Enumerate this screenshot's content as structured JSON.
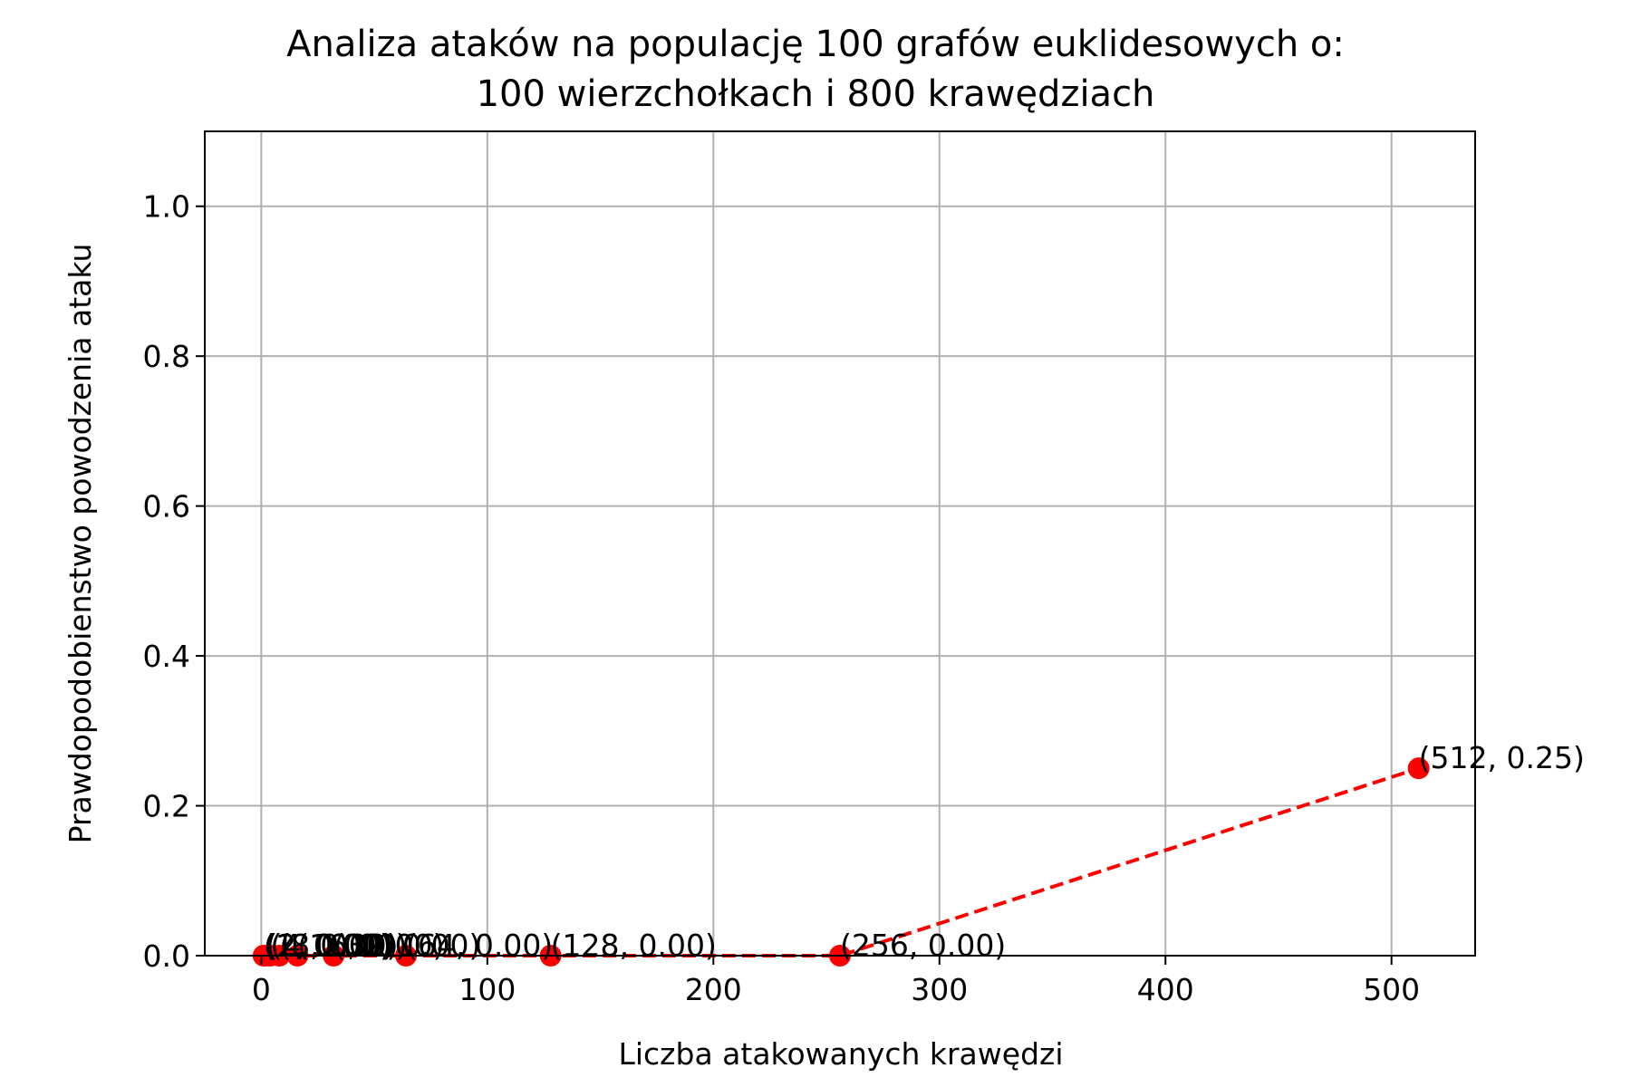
{
  "chart_data": {
    "type": "line",
    "title_line1": "Analiza ataków na populację 100 grafów euklidesowych o:",
    "title_line2": "100 wierzchołkach i 800 krawędziach",
    "xlabel": "Liczba atakowanych krawędzi",
    "ylabel": "Prawdopodobienstwo powodzenia ataku",
    "xlim": [
      -25,
      537
    ],
    "ylim": [
      0,
      1.1
    ],
    "x_ticks": [
      0,
      100,
      200,
      300,
      400,
      500
    ],
    "y_ticks": [
      0.0,
      0.2,
      0.4,
      0.6,
      0.8,
      1.0
    ],
    "x_tick_labels": [
      "0",
      "100",
      "200",
      "300",
      "400",
      "500"
    ],
    "y_tick_labels": [
      "0.0",
      "0.2",
      "0.4",
      "0.6",
      "0.8",
      "1.0"
    ],
    "grid": true,
    "series": [
      {
        "color": "#ff0000",
        "line_style": "dashed",
        "marker": "circle",
        "x": [
          1,
          2,
          4,
          8,
          16,
          32,
          64,
          128,
          256,
          512
        ],
        "y": [
          0.0,
          0.0,
          0.0,
          0.0,
          0.0,
          0.0,
          0.0,
          0.0,
          0.0,
          0.25
        ],
        "point_labels": [
          "(1, 0.00)",
          "(2, 0.00)",
          "(4, 0.00)",
          "(8, 0.00)",
          "(16, 0.00)",
          "(32, 0.00)",
          "(64, 0.00)",
          "(128, 0.00)",
          "(256, 0.00)",
          "(512, 0.25)"
        ]
      }
    ]
  }
}
